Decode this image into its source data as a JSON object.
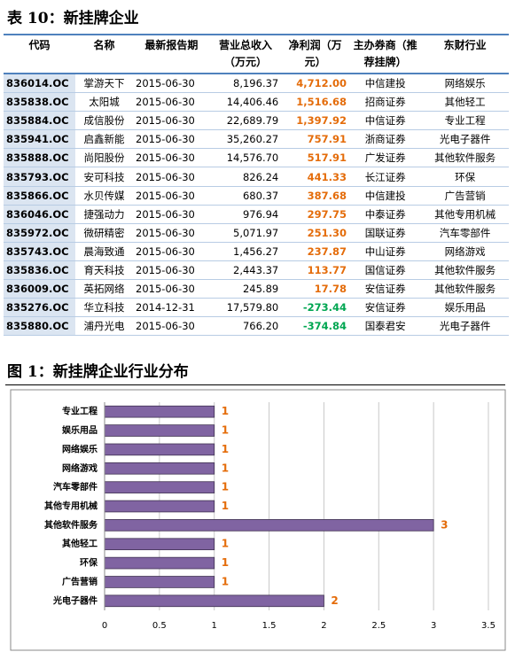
{
  "table": {
    "title": "表 10：新挂牌企业",
    "headers": [
      "代码",
      "名称",
      "最新报告期",
      "营业总收入（万元）",
      "净利润（万元）",
      "主办券商（推荐挂牌）",
      "东财行业"
    ],
    "rows": [
      [
        "836014.OC",
        "掌游天下",
        "2015-06-30",
        "8,196.37",
        "4,712.00",
        "中信建投",
        "网络娱乐"
      ],
      [
        "835838.OC",
        "太阳城",
        "2015-06-30",
        "14,406.46",
        "1,516.68",
        "招商证券",
        "其他轻工"
      ],
      [
        "835884.OC",
        "成信股份",
        "2015-06-30",
        "22,689.79",
        "1,397.92",
        "中信证券",
        "专业工程"
      ],
      [
        "835941.OC",
        "启鑫新能",
        "2015-06-30",
        "35,260.27",
        "757.91",
        "浙商证券",
        "光电子器件"
      ],
      [
        "835888.OC",
        "尚阳股份",
        "2015-06-30",
        "14,576.70",
        "517.91",
        "广发证券",
        "其他软件服务"
      ],
      [
        "835793.OC",
        "安可科技",
        "2015-06-30",
        "826.24",
        "441.33",
        "长江证券",
        "环保"
      ],
      [
        "835866.OC",
        "水贝传媒",
        "2015-06-30",
        "680.37",
        "387.68",
        "中信建投",
        "广告营销"
      ],
      [
        "836046.OC",
        "捷强动力",
        "2015-06-30",
        "976.94",
        "297.75",
        "中泰证券",
        "其他专用机械"
      ],
      [
        "835972.OC",
        "微研精密",
        "2015-06-30",
        "5,071.97",
        "251.30",
        "国联证券",
        "汽车零部件"
      ],
      [
        "835743.OC",
        "晨海致通",
        "2015-06-30",
        "1,456.27",
        "237.87",
        "中山证券",
        "网络游戏"
      ],
      [
        "835836.OC",
        "育天科技",
        "2015-06-30",
        "2,443.37",
        "113.77",
        "国信证券",
        "其他软件服务"
      ],
      [
        "836009.OC",
        "英拓网络",
        "2015-06-30",
        "245.89",
        "17.78",
        "安信证券",
        "其他软件服务"
      ],
      [
        "835276.OC",
        "华立科技",
        "2014-12-31",
        "17,579.80",
        "-273.44",
        "安信证券",
        "娱乐用品"
      ],
      [
        "835880.OC",
        "浦丹光电",
        "2015-06-30",
        "766.20",
        "-374.84",
        "国泰君安",
        "光电子器件"
      ]
    ]
  },
  "chart_data": {
    "type": "barh",
    "title": "图 1：新挂牌企业行业分布",
    "categories": [
      "专业工程",
      "娱乐用品",
      "网络娱乐",
      "网络游戏",
      "汽车零部件",
      "其他专用机械",
      "其他软件服务",
      "其他轻工",
      "环保",
      "广告营销",
      "光电子器件"
    ],
    "values": [
      1,
      1,
      1,
      1,
      1,
      1,
      3,
      1,
      1,
      1,
      2
    ],
    "color": "#8064a2",
    "label_color": "#e46c0a",
    "xlim": [
      0,
      3.5
    ],
    "xticks": [
      0,
      0.5,
      1,
      1.5,
      2,
      2.5,
      3,
      3.5
    ],
    "grid": true
  }
}
